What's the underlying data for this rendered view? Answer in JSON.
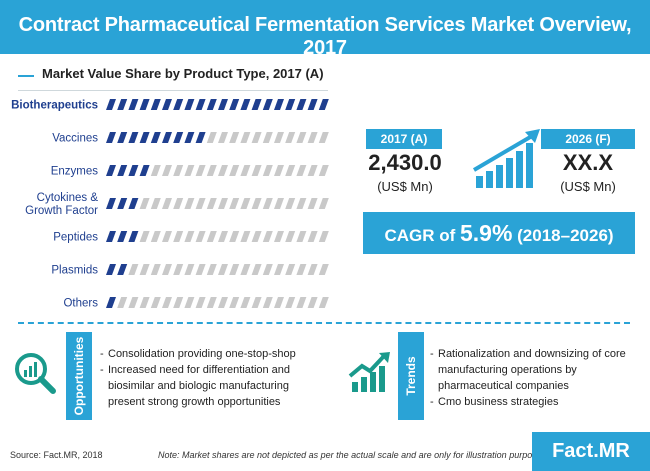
{
  "header": {
    "title": "Contract Pharmaceutical Fermentation Services Market Overview, 2017"
  },
  "chart_data": {
    "type": "bar",
    "orientation": "horizontal",
    "title": "Market Value Share by Product Type, 2017 (A)",
    "categories": [
      "Biotherapeutics",
      "Vaccines",
      "Enzymes",
      "Cytokines & Growth Factor",
      "Peptides",
      "Plasmids",
      "Others"
    ],
    "category_lines": [
      [
        "Biotherapeutics"
      ],
      [
        "Vaccines"
      ],
      [
        "Enzymes"
      ],
      [
        "Cytokines &",
        "Growth Factor"
      ],
      [
        "Peptides"
      ],
      [
        "Plasmids"
      ],
      [
        "Others"
      ]
    ],
    "values": [
      100,
      44,
      22,
      17,
      13,
      8,
      6
    ],
    "value_unit": "% of bar filled (illustrative, not to scale)",
    "highlighted_category": "Biotherapeutics",
    "xlim": [
      0,
      100
    ],
    "grid": false,
    "colors": {
      "fill": "#1f3f8f",
      "empty": "#c9c9c9",
      "label": "#1f3f8f"
    }
  },
  "kpis": {
    "current": {
      "badge": "2017 (A)",
      "value": "2,430.0",
      "unit": "(US$ Mn)"
    },
    "forecast": {
      "badge": "2026 (F)",
      "value": "XX.X",
      "unit": "(US$ Mn)"
    },
    "growth_icon": "growth-bar-chart-icon"
  },
  "cagr": {
    "prefix": "CAGR of ",
    "value": "5.9%",
    "suffix": " (2018–2026)"
  },
  "opportunities": {
    "label": "Opportunities",
    "icon": "magnifier-chart-icon",
    "bullets": [
      "Consolidation providing one-stop-shop",
      "Increased need for differentiation and biosimilar and biologic manufacturing present strong growth opportunities"
    ]
  },
  "trends": {
    "label": "Trends",
    "icon": "trend-up-chart-icon",
    "bullets": [
      "Rationalization and downsizing of core manufacturing operations by pharmaceutical companies",
      "Cmo business strategies"
    ]
  },
  "footer": {
    "source": "Source: Fact.MR, 2018",
    "note": "Note: Market shares are not depicted as per the actual scale and are only for illustration purposes.",
    "logo": "Fact.MR"
  },
  "colors": {
    "brand": "#2aa3d6",
    "navy": "#1f3f8f",
    "text": "#222222"
  }
}
